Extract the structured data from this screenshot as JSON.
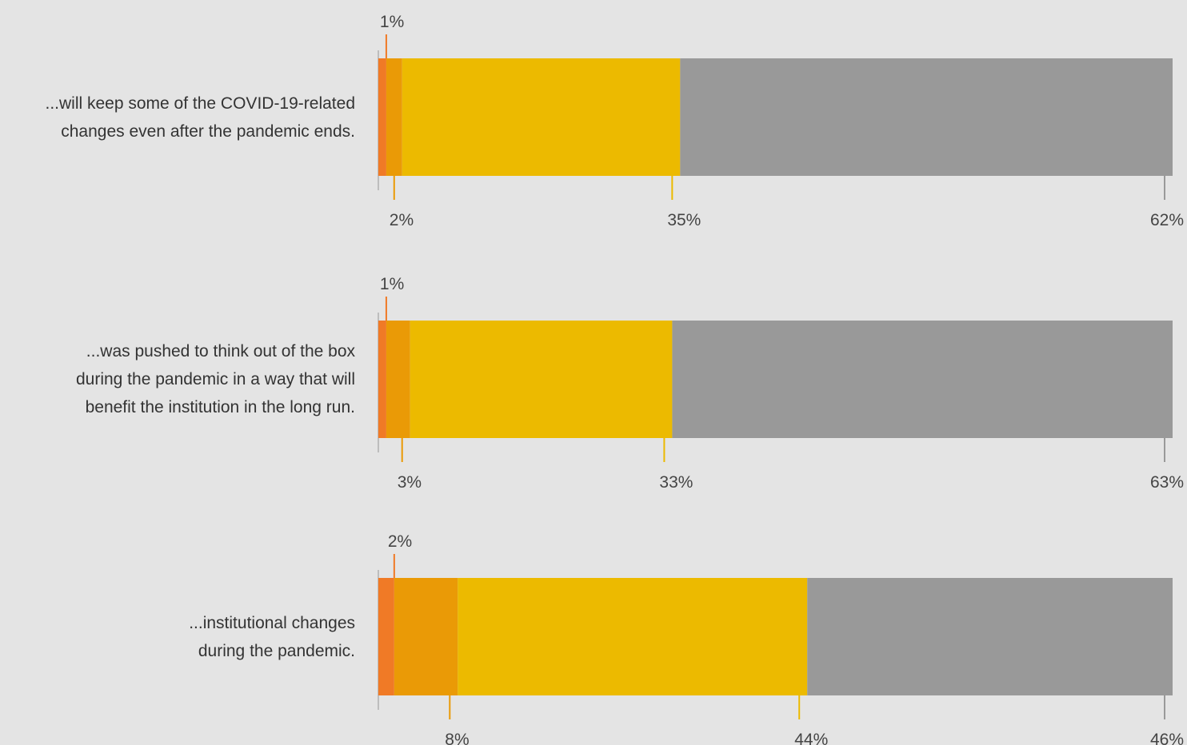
{
  "chart_data": {
    "type": "bar",
    "orientation": "horizontal",
    "stacked": true,
    "categories": [
      [
        "...will keep some of the COVID-19-related",
        "changes even after the pandemic ends."
      ],
      [
        "...was pushed to think out of the box",
        "during the pandemic in a way that will",
        "benefit the institution in the long run."
      ],
      [
        "...institutional changes",
        "during the pandemic."
      ]
    ],
    "series": [
      {
        "color": "#f07a26",
        "values": [
          1,
          1,
          2
        ],
        "labels": [
          "1%",
          "1%",
          "2%"
        ]
      },
      {
        "color": "#ea9a06",
        "values": [
          2,
          3,
          8
        ],
        "labels": [
          "2%",
          "3%",
          "8%"
        ]
      },
      {
        "color": "#ecba00",
        "values": [
          35,
          33,
          44
        ],
        "labels": [
          "35%",
          "33%",
          "44%"
        ]
      },
      {
        "color": "#999999",
        "values": [
          62,
          63,
          46
        ],
        "labels": [
          "62%",
          "63%",
          "46%"
        ]
      }
    ],
    "xlim": [
      0,
      100
    ],
    "grid": false,
    "legend": "none"
  }
}
